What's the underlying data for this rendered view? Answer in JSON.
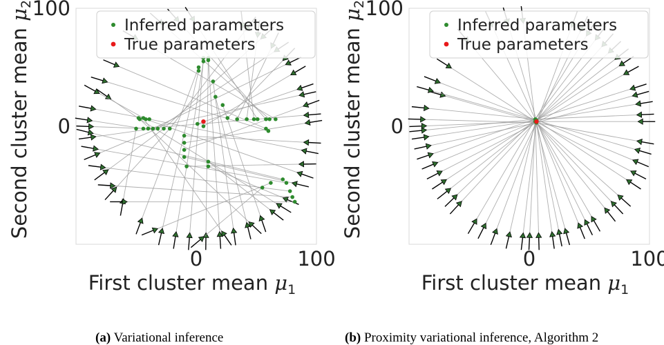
{
  "chart_data": [
    {
      "id": "a",
      "type": "scatter",
      "caption_label": "(a)",
      "caption_text": "Variational inference",
      "xlabel": "First cluster mean μ1",
      "xlabel_text": "First cluster mean",
      "xlabel_symbol": "μ",
      "xlabel_sub": "1",
      "ylabel": "Second cluster mean μ2",
      "ylabel_text": "Second cluster mean",
      "ylabel_symbol": "μ",
      "ylabel_sub": "2",
      "xlim": [
        -100,
        100
      ],
      "ylim": [
        -100,
        100
      ],
      "xticks": [
        "0",
        "100"
      ],
      "xtick_values": [
        0,
        100
      ],
      "yticks": [
        "0",
        "100"
      ],
      "ytick_values": [
        0,
        100
      ],
      "grid": false,
      "legend_placement": "top-right",
      "series": [
        {
          "name": "Inferred parameters",
          "color": "#2e8b2e",
          "points": [
            [
              -47,
              6
            ],
            [
              -42,
              6
            ],
            [
              -39,
              6
            ],
            [
              -44,
              -2
            ],
            [
              -40,
              -2
            ],
            [
              -36,
              -2
            ],
            [
              -32,
              -2
            ],
            [
              -27,
              -2
            ],
            [
              -22,
              -2
            ],
            [
              -50,
              -2
            ],
            [
              2,
              50
            ],
            [
              2,
              47
            ],
            [
              6,
              55
            ],
            [
              6,
              58
            ],
            [
              10,
              56
            ],
            [
              10,
              58
            ],
            [
              14,
              38
            ],
            [
              16,
              25
            ],
            [
              22,
              18
            ],
            [
              10,
              -30
            ],
            [
              10,
              -34
            ],
            [
              -10,
              -26
            ],
            [
              -8,
              -34
            ],
            [
              -10,
              -8
            ],
            [
              -10,
              -14
            ],
            [
              -10,
              -20
            ],
            [
              1,
              2
            ],
            [
              6,
              0
            ],
            [
              26,
              7
            ],
            [
              34,
              6
            ],
            [
              42,
              6
            ],
            [
              48,
              6
            ],
            [
              51,
              6
            ],
            [
              58,
              6
            ],
            [
              61,
              6
            ],
            [
              66,
              6
            ],
            [
              58,
              -2
            ],
            [
              60,
              -4
            ],
            [
              72,
              -45
            ],
            [
              75,
              -48
            ],
            [
              78,
              -55
            ],
            [
              80,
              -60
            ],
            [
              82,
              -64
            ],
            [
              62,
              -48
            ],
            [
              55,
              -52
            ],
            [
              -44,
              7
            ],
            [
              -48,
              7
            ]
          ],
          "start_points": [
            [
              -78,
              28
            ],
            [
              -88,
              32
            ],
            [
              -92,
              16
            ],
            [
              -95,
              6
            ],
            [
              -94,
              0
            ],
            [
              -92,
              -10
            ],
            [
              -88,
              -26
            ],
            [
              -80,
              -42
            ],
            [
              -72,
              -58
            ],
            [
              -62,
              -70
            ],
            [
              -48,
              -86
            ],
            [
              -30,
              -95
            ],
            [
              -18,
              -98
            ],
            [
              -6,
              -99
            ],
            [
              8,
              -99
            ],
            [
              20,
              -98
            ],
            [
              32,
              -95
            ],
            [
              44,
              -90
            ],
            [
              56,
              -84
            ],
            [
              68,
              -76
            ],
            [
              80,
              -64
            ],
            [
              88,
              -50
            ],
            [
              94,
              -32
            ],
            [
              98,
              -14
            ],
            [
              99,
              4
            ],
            [
              97,
              20
            ],
            [
              92,
              34
            ],
            [
              86,
              48
            ],
            [
              78,
              62
            ],
            [
              66,
              74
            ],
            [
              52,
              84
            ],
            [
              38,
              92
            ],
            [
              -6,
              96
            ],
            [
              -20,
              95
            ],
            [
              -34,
              92
            ],
            [
              -56,
              78
            ],
            [
              -72,
              54
            ],
            [
              -82,
              40
            ],
            [
              -94,
              -4
            ],
            [
              -90,
              -18
            ],
            [
              -84,
              -34
            ],
            [
              -76,
              -50
            ],
            [
              -66,
              -64
            ],
            [
              -40,
              -90
            ],
            [
              0,
              -99
            ],
            [
              26,
              -96
            ],
            [
              50,
              -87
            ],
            [
              74,
              -70
            ],
            [
              92,
              -42
            ],
            [
              96,
              -22
            ],
            [
              98,
              10
            ],
            [
              94,
              28
            ],
            [
              82,
              56
            ],
            [
              72,
              68
            ],
            [
              60,
              80
            ],
            [
              46,
              88
            ]
          ],
          "start_color": "#2f6e2f"
        },
        {
          "name": "True parameters",
          "color": "#e8191a",
          "points": [
            [
              6,
              4
            ]
          ]
        }
      ]
    },
    {
      "id": "b",
      "type": "scatter",
      "caption_label": "(b)",
      "caption_text": "Proximity variational inference, Algorithm 2",
      "xlabel": "First cluster mean μ1",
      "xlabel_text": "First cluster mean",
      "xlabel_symbol": "μ",
      "xlabel_sub": "1",
      "ylabel": "Second cluster mean μ2",
      "ylabel_text": "Second cluster mean",
      "ylabel_symbol": "μ",
      "ylabel_sub": "2",
      "xlim": [
        -100,
        100
      ],
      "ylim": [
        -100,
        100
      ],
      "xticks": [
        "0",
        "100"
      ],
      "xtick_values": [
        0,
        100
      ],
      "yticks": [
        "0",
        "100"
      ],
      "ytick_values": [
        0,
        100
      ],
      "grid": false,
      "legend_placement": "top-right",
      "series": [
        {
          "name": "Inferred parameters",
          "color": "#2e8b2e",
          "points": [
            [
              5,
              4
            ],
            [
              6,
              5
            ],
            [
              5,
              6
            ],
            [
              6,
              3
            ]
          ],
          "start_points": [
            [
              -78,
              28
            ],
            [
              -88,
              32
            ],
            [
              -92,
              16
            ],
            [
              -95,
              6
            ],
            [
              -94,
              0
            ],
            [
              -92,
              -10
            ],
            [
              -88,
              -26
            ],
            [
              -80,
              -42
            ],
            [
              -72,
              -58
            ],
            [
              -62,
              -70
            ],
            [
              -48,
              -86
            ],
            [
              -30,
              -95
            ],
            [
              -18,
              -98
            ],
            [
              -6,
              -99
            ],
            [
              8,
              -99
            ],
            [
              20,
              -98
            ],
            [
              32,
              -95
            ],
            [
              44,
              -90
            ],
            [
              56,
              -84
            ],
            [
              68,
              -76
            ],
            [
              80,
              -64
            ],
            [
              88,
              -50
            ],
            [
              94,
              -32
            ],
            [
              98,
              -14
            ],
            [
              99,
              4
            ],
            [
              97,
              20
            ],
            [
              92,
              34
            ],
            [
              86,
              48
            ],
            [
              78,
              62
            ],
            [
              66,
              74
            ],
            [
              52,
              84
            ],
            [
              38,
              92
            ],
            [
              -6,
              96
            ],
            [
              -20,
              95
            ],
            [
              -34,
              92
            ],
            [
              -56,
              78
            ],
            [
              -72,
              54
            ],
            [
              -82,
              40
            ],
            [
              -94,
              -4
            ],
            [
              -90,
              -18
            ],
            [
              -84,
              -34
            ],
            [
              -76,
              -50
            ],
            [
              -66,
              -64
            ],
            [
              -40,
              -90
            ],
            [
              0,
              -99
            ],
            [
              26,
              -96
            ],
            [
              50,
              -87
            ],
            [
              74,
              -70
            ],
            [
              92,
              -42
            ],
            [
              96,
              -22
            ],
            [
              98,
              10
            ],
            [
              94,
              28
            ],
            [
              82,
              56
            ],
            [
              72,
              68
            ],
            [
              60,
              80
            ],
            [
              46,
              88
            ]
          ],
          "start_color": "#2f6e2f"
        },
        {
          "name": "True parameters",
          "color": "#e8191a",
          "points": [
            [
              6,
              4
            ]
          ]
        }
      ]
    }
  ]
}
